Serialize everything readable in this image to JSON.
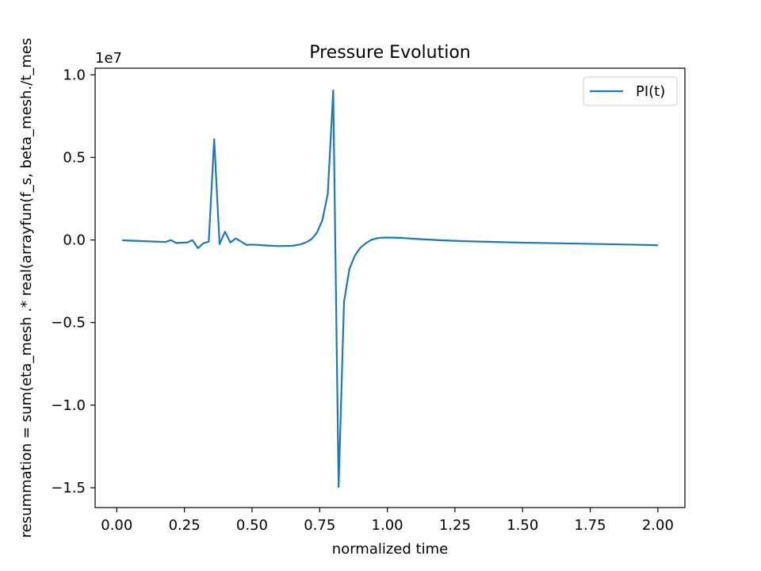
{
  "chart_data": {
    "type": "line",
    "title": "Pressure Evolution",
    "xlabel": "normalized time",
    "ylabel": "resummation = sum(eta_mesh .* real(arrayfun(f_s, beta_mesh./t_mes",
    "y_offset_label": "1e7",
    "xlim": [
      -0.08,
      2.1
    ],
    "ylim": [
      -16200000,
      10400000
    ],
    "x_ticks": [
      0.0,
      0.25,
      0.5,
      0.75,
      1.0,
      1.25,
      1.5,
      1.75,
      2.0
    ],
    "x_tick_labels": [
      "0.00",
      "0.25",
      "0.50",
      "0.75",
      "1.00",
      "1.25",
      "1.50",
      "1.75",
      "2.00"
    ],
    "y_ticks": [
      -15000000,
      -10000000,
      -5000000,
      0,
      5000000,
      10000000
    ],
    "y_tick_labels": [
      "−1.5",
      "−1.0",
      "−0.5",
      "0.0",
      "0.5",
      "1.0"
    ],
    "grid": false,
    "legend_position": "top-right",
    "color": "#1f77b4",
    "series": [
      {
        "name": "PI(t)",
        "x": [
          0.02,
          0.18,
          0.2,
          0.22,
          0.26,
          0.28,
          0.3,
          0.32,
          0.34,
          0.36,
          0.38,
          0.4,
          0.42,
          0.44,
          0.46,
          0.48,
          0.5,
          0.55,
          0.6,
          0.65,
          0.68,
          0.7,
          0.72,
          0.74,
          0.76,
          0.78,
          0.8,
          0.82,
          0.84,
          0.86,
          0.88,
          0.9,
          0.92,
          0.94,
          0.96,
          0.98,
          1.0,
          1.05,
          1.1,
          1.2,
          1.3,
          1.4,
          1.5,
          1.6,
          1.7,
          1.8,
          1.9,
          2.0
        ],
        "y": [
          -20000,
          -120000,
          -10000,
          -180000,
          -150000,
          -10000,
          -500000,
          -200000,
          -100000,
          6100000,
          -250000,
          500000,
          -150000,
          100000,
          -100000,
          -300000,
          -280000,
          -330000,
          -370000,
          -350000,
          -260000,
          -140000,
          50000,
          450000,
          1200000,
          2800000,
          9050000,
          -14950000,
          -3750000,
          -1750000,
          -950000,
          -480000,
          -200000,
          0,
          100000,
          140000,
          150000,
          130000,
          70000,
          -20000,
          -80000,
          -120000,
          -160000,
          -190000,
          -220000,
          -250000,
          -280000,
          -320000
        ]
      }
    ]
  }
}
